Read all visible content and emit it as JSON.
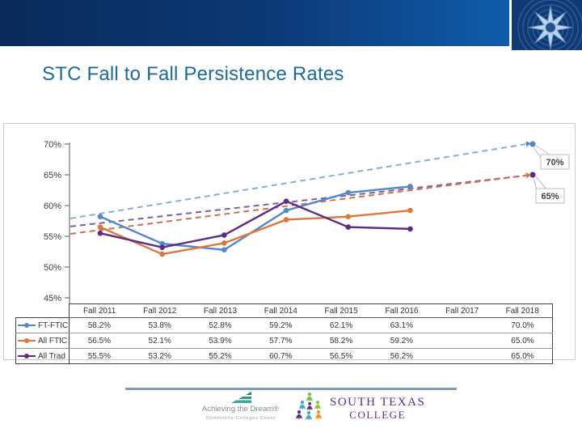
{
  "title": "STC Fall to Fall Persistence Rates",
  "header": {
    "decoration": "compass-rose-image"
  },
  "chart_data": {
    "type": "line",
    "title": "STC Fall to Fall Persistence Rates",
    "categories": [
      "Fall 2011",
      "Fall 2012",
      "Fall 2013",
      "Fall 2014",
      "Fall 2015",
      "Fall 2016",
      "Fall 2017",
      "Fall 2018"
    ],
    "yticks": [
      "70%",
      "65%",
      "60%",
      "55%",
      "50%",
      "45%"
    ],
    "ylim": [
      45,
      70
    ],
    "grid": false,
    "legend_position": "data-table-left",
    "solid_through_index": 5,
    "series": [
      {
        "name": "FT-FTIC",
        "color": "#5189c8",
        "values": [
          58.2,
          53.8,
          52.8,
          59.2,
          62.1,
          63.1,
          null,
          70.0
        ]
      },
      {
        "name": "All FTIC",
        "color": "#e0763b",
        "values": [
          56.5,
          52.1,
          53.9,
          57.7,
          58.2,
          59.2,
          null,
          65.0
        ]
      },
      {
        "name": "All Trad",
        "color": "#5b2c86",
        "values": [
          55.5,
          53.2,
          55.2,
          60.7,
          56.5,
          56.2,
          null,
          65.0
        ]
      }
    ],
    "trendlines": [
      {
        "series": "FT-FTIC",
        "color": "#86add9",
        "marker_color": "#5189c8",
        "start_value": 57.9,
        "end_value": 70.0,
        "end_style": "arrow+circle"
      },
      {
        "series": "All Trad",
        "color": "#7d5fa0",
        "marker_color": "#5b2c86",
        "start_value": 56.6,
        "end_value": 65.0,
        "end_style": "circle"
      },
      {
        "series": "All FTIC",
        "color": "#d0704e",
        "marker_color": "#e0763b",
        "start_value": 55.4,
        "end_value": 64.9,
        "end_style": "arrow"
      }
    ],
    "callouts": [
      {
        "label": "70%",
        "anchor_trend": 0
      },
      {
        "label": "65%",
        "anchor_trend": 1
      }
    ]
  },
  "table": {
    "columns": [
      "Fall 2011",
      "Fall 2012",
      "Fall 2013",
      "Fall 2014",
      "Fall 2015",
      "Fall 2016",
      "Fall 2017",
      "Fall 2018"
    ],
    "rows": [
      {
        "label": "FT-FTIC",
        "color": "#5189c8",
        "values": [
          "58.2%",
          "53.8%",
          "52.8%",
          "59.2%",
          "62.1%",
          "63.1%",
          "",
          "70.0%"
        ]
      },
      {
        "label": "All FTIC",
        "color": "#e0763b",
        "values": [
          "56.5%",
          "52.1%",
          "53.9%",
          "57.7%",
          "58.2%",
          "59.2%",
          "",
          "65.0%"
        ]
      },
      {
        "label": "All Trad",
        "color": "#5b2c86",
        "values": [
          "55.5%",
          "53.2%",
          "55.2%",
          "60.7%",
          "56.5%",
          "56.2%",
          "",
          "65.0%"
        ]
      }
    ]
  },
  "footer": {
    "atd_name": "Achieving the Dream®",
    "atd_tagline": "Community Colleges Count",
    "stc_line1": "SOUTH TEXAS",
    "stc_line2": "COLLEGE"
  },
  "colors": {
    "banner_left": "#092a5a",
    "banner_right": "#0f5cab",
    "title_text": "#1a6b9f",
    "divider": "#7e9bb7",
    "axis_text": "#404040",
    "callout_border": "#b7bcc4"
  }
}
